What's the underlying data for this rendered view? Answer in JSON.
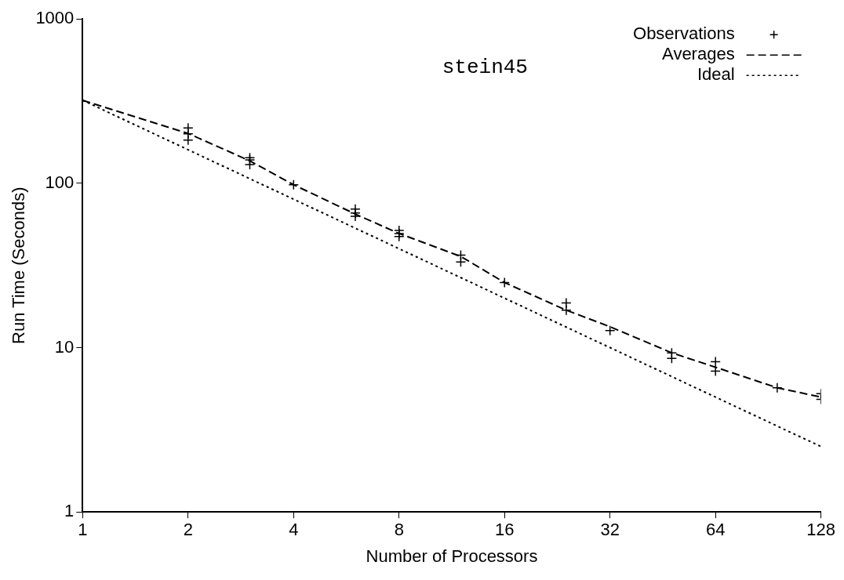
{
  "chart_data": {
    "type": "line",
    "title": "stein45",
    "xlabel": "Number of Processors",
    "ylabel": "Run Time (Seconds)",
    "log": "xy",
    "grid": false,
    "legend": "top right",
    "xlim": [
      1,
      128
    ],
    "xticks": [
      1,
      2,
      4,
      8,
      16,
      32,
      64,
      128
    ],
    "ylim": [
      1,
      1000
    ],
    "yticks": [
      1,
      10,
      100,
      1000
    ],
    "series": [
      {
        "name": "Observations",
        "type": "scatter",
        "marker": "cross",
        "color": "#000000",
        "x": [
          2,
          2,
          2,
          3,
          3,
          3,
          4,
          6,
          6,
          6,
          8,
          8,
          8,
          12,
          12,
          16,
          24,
          24,
          32,
          48,
          48,
          64,
          64,
          96,
          128,
          128
        ],
        "values": [
          217,
          200,
          183,
          143,
          139,
          130,
          98,
          69.6,
          66,
          63,
          51.6,
          49.5,
          47.5,
          36.6,
          33.2,
          24.9,
          18.7,
          16.9,
          12.7,
          9.3,
          8.6,
          8.2,
          7.2,
          5.7,
          5.25,
          4.85
        ]
      },
      {
        "name": "Averages",
        "type": "line",
        "line_style": "dashed",
        "marker": "none",
        "color": "#000000",
        "x": [
          1,
          2,
          3,
          4,
          6,
          8,
          12,
          16,
          24,
          32,
          48,
          64,
          96,
          128
        ],
        "values": [
          320,
          201,
          137,
          98,
          65,
          49.5,
          35.9,
          24.9,
          16.9,
          13.4,
          9.3,
          7.6,
          5.7,
          5.0
        ]
      },
      {
        "name": "Ideal",
        "type": "line",
        "line_style": "dotted",
        "marker": "none",
        "color": "#000000",
        "x": [
          1,
          128
        ],
        "values": [
          320,
          2.5
        ]
      }
    ]
  }
}
